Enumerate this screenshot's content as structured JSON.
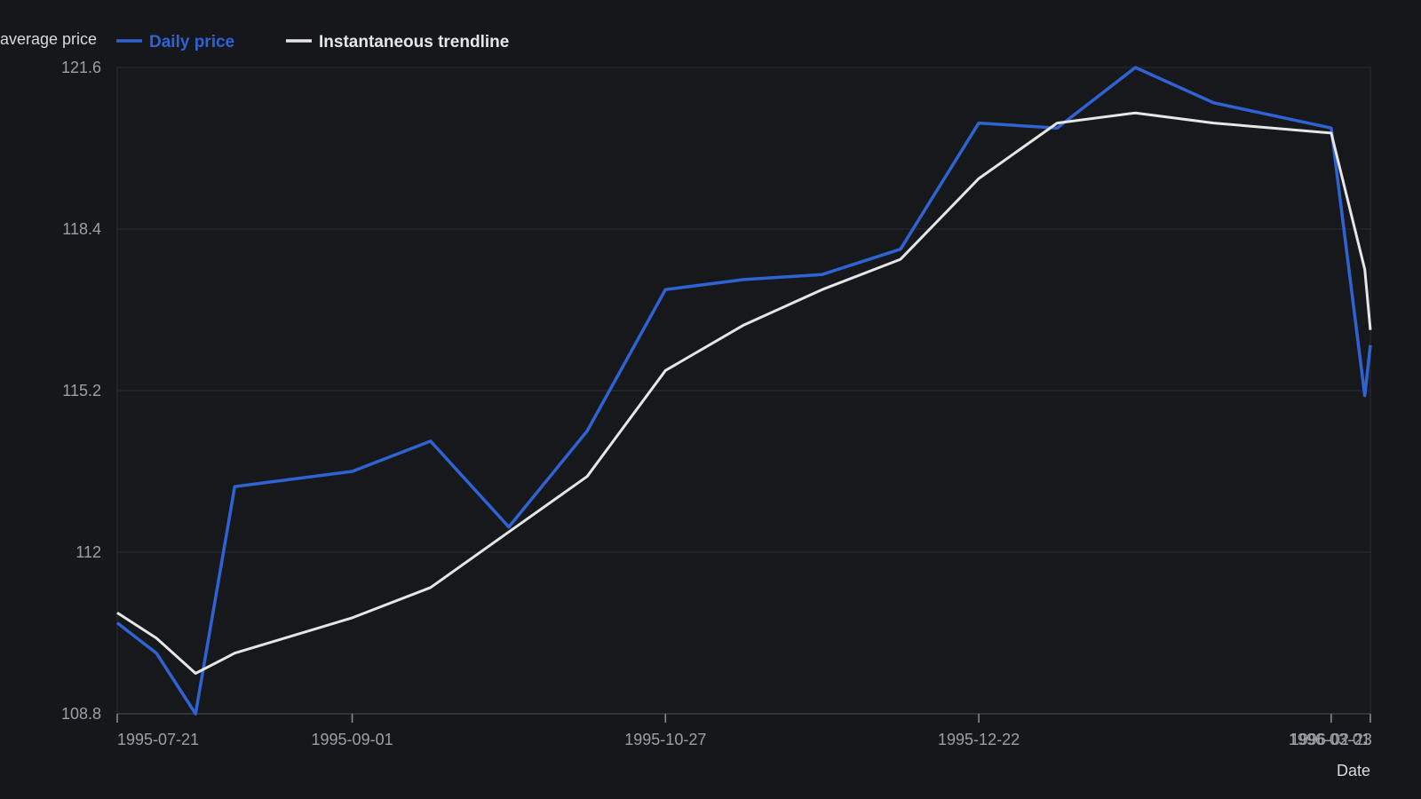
{
  "chart_data": {
    "type": "line",
    "title": "",
    "ylabel": "average price",
    "xlabel": "Date",
    "ylim": [
      108.8,
      121.6
    ],
    "y_ticks": [
      108.8,
      112,
      115.2,
      118.4,
      121.6
    ],
    "x_range": [
      "1995-07-21",
      "1996-03-01"
    ],
    "x_ticks": [
      "1995-07-21",
      "1995-09-01",
      "1995-10-27",
      "1995-12-22",
      "1996-02-23",
      "1996-03-01"
    ],
    "grid": true,
    "legend_position": "top-left",
    "x": [
      "1995-07-21",
      "1995-07-28",
      "1995-08-04",
      "1995-08-11",
      "1995-09-01",
      "1995-09-15",
      "1995-09-29",
      "1995-10-13",
      "1995-10-27",
      "1995-11-10",
      "1995-11-24",
      "1995-12-08",
      "1995-12-22",
      "1996-01-05",
      "1996-01-19",
      "1996-02-02",
      "1996-02-23",
      "1996-02-29",
      "1996-03-01"
    ],
    "series": [
      {
        "name": "Daily price",
        "color": "#2f63d4",
        "values": [
          110.6,
          110.0,
          108.8,
          113.3,
          113.6,
          114.2,
          112.5,
          114.4,
          117.2,
          117.4,
          117.5,
          118.0,
          120.5,
          120.4,
          121.6,
          120.9,
          120.4,
          115.1,
          116.1
        ]
      },
      {
        "name": "Instantaneous trendline",
        "color": "#e6e6e6",
        "values": [
          110.8,
          110.3,
          109.6,
          110.0,
          110.7,
          111.3,
          112.4,
          113.5,
          115.6,
          116.5,
          117.2,
          117.8,
          119.4,
          120.5,
          120.7,
          120.5,
          120.3,
          117.6,
          116.4
        ]
      }
    ]
  }
}
